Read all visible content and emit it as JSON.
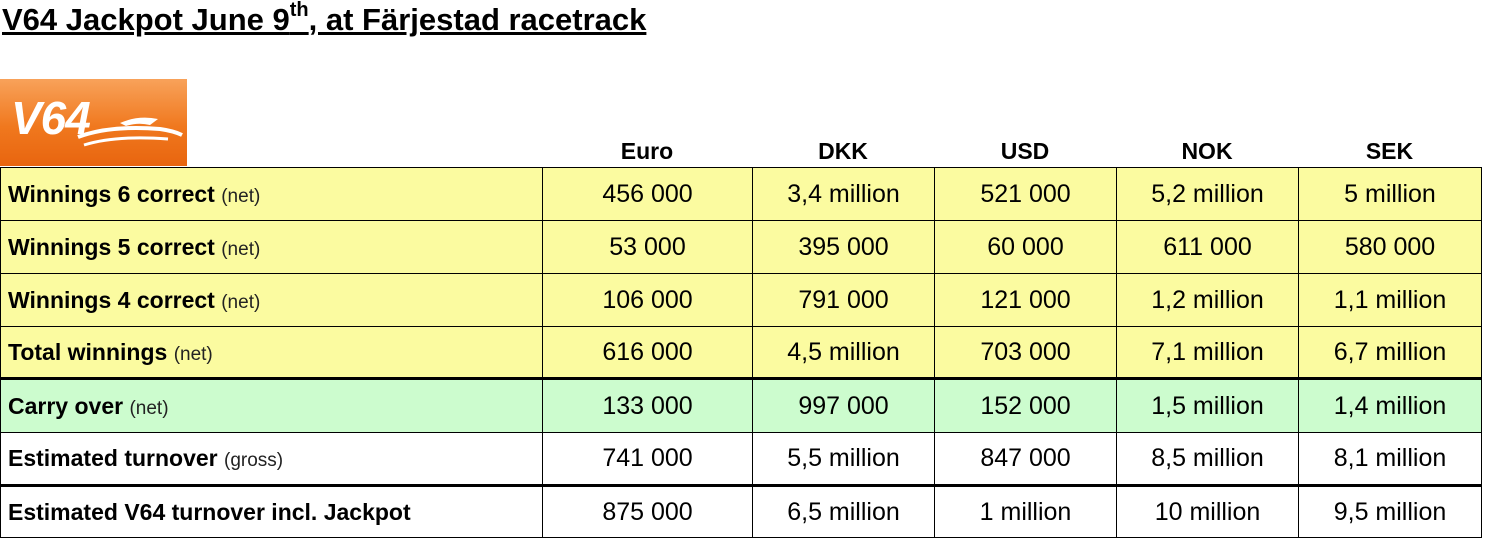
{
  "title": {
    "main": "V64 Jackpot June 9",
    "sup": "th",
    "rest": ", at Färjestad racetrack"
  },
  "logo": {
    "text": "V64"
  },
  "columns": [
    "Euro",
    "DKK",
    "USD",
    "NOK",
    "SEK"
  ],
  "rows": [
    {
      "label": "Winnings 6 correct",
      "qualifier": "(net)",
      "values": [
        "456 000",
        "3,4 million",
        "521 000",
        "5,2 million",
        "5 million"
      ]
    },
    {
      "label": "Winnings 5 correct",
      "qualifier": "(net)",
      "values": [
        "53 000",
        "395 000",
        "60 000",
        "611 000",
        "580 000"
      ]
    },
    {
      "label": "Winnings 4 correct",
      "qualifier": "(net)",
      "values": [
        "106 000",
        "791 000",
        "121 000",
        "1,2 million",
        "1,1 million"
      ]
    },
    {
      "label": "Total winnings",
      "qualifier": "(net)",
      "values": [
        "616 000",
        "4,5 million",
        "703 000",
        "7,1 million",
        "6,7 million"
      ]
    },
    {
      "label": "Carry over",
      "qualifier": "(net)",
      "values": [
        "133 000",
        "997 000",
        "152 000",
        "1,5 million",
        "1,4 million"
      ]
    },
    {
      "label": "Estimated turnover",
      "qualifier": "(gross)",
      "values": [
        "741 000",
        "5,5 million",
        "847 000",
        "8,5 million",
        "8,1 million"
      ]
    },
    {
      "label": "Estimated V64 turnover incl. Jackpot",
      "qualifier": "",
      "values": [
        "875 000",
        "6,5 million",
        "1 million",
        "10 million",
        "9,5 million"
      ]
    }
  ],
  "colors": {
    "yellow": "#fbfba0",
    "green": "#ccfcce",
    "logo_orange": "#f0781e"
  }
}
